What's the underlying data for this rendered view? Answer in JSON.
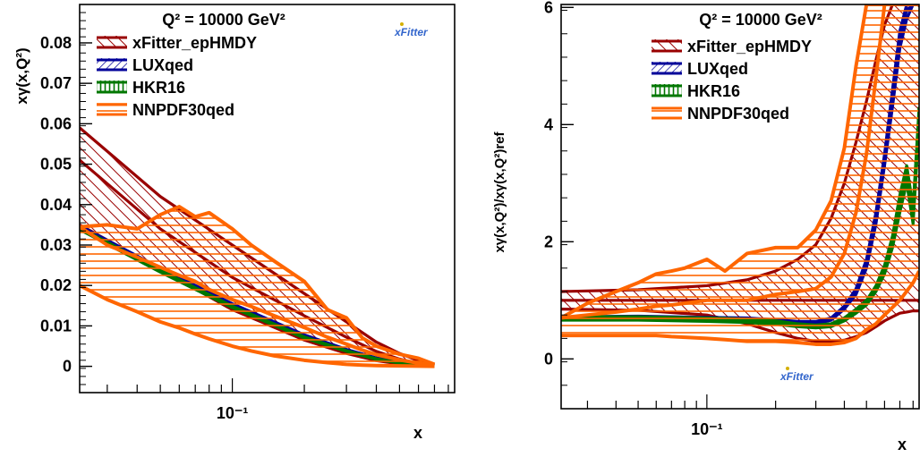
{
  "chart_data": [
    {
      "type": "line",
      "id": "abs",
      "annotation": "Q² = 10000 GeV²",
      "ylabel": "xγ(x,Q²)",
      "xlabel": "x",
      "xscale": "log",
      "xlim": [
        0.023,
        0.85
      ],
      "ylim": [
        -0.0065,
        0.0895
      ],
      "xticks": [
        0.1
      ],
      "xtick_labels": [
        "10⁻¹"
      ],
      "yticks": [
        0,
        0.01,
        0.02,
        0.03,
        0.04,
        0.05,
        0.06,
        0.07,
        0.08
      ],
      "ytick_labels": [
        "0",
        "0.01",
        "0.02",
        "0.03",
        "0.04",
        "0.05",
        "0.06",
        "0.07",
        "0.08"
      ],
      "logo": "xFitter",
      "legend": "top-left",
      "series": [
        {
          "name": "xFitter_epHMDY",
          "style": "band",
          "hatch": "diagonal",
          "color": "#990000",
          "x": [
            0.023,
            0.05,
            0.1,
            0.2,
            0.3,
            0.4,
            0.5,
            0.6,
            0.7
          ],
          "upper": [
            0.059,
            0.042,
            0.03,
            0.018,
            0.011,
            0.006,
            0.0032,
            0.0014,
            0.0004
          ],
          "lower": [
            0.035,
            0.024,
            0.014,
            0.0065,
            0.0032,
            0.0014,
            0.0006,
            0.0002,
            5e-05
          ],
          "central": [
            0.051,
            0.034,
            0.022,
            0.0125,
            0.0072,
            0.0037,
            0.0018,
            0.0007,
            0.0002
          ]
        },
        {
          "name": "LUXqed",
          "style": "band",
          "hatch": "cross",
          "color": "#000099",
          "x": [
            0.023,
            0.05,
            0.1,
            0.2,
            0.3,
            0.4,
            0.5,
            0.6,
            0.7
          ],
          "upper": [
            0.0348,
            0.0243,
            0.0155,
            0.0078,
            0.0042,
            0.0021,
            0.001,
            0.0004,
            0.0001
          ],
          "lower": [
            0.0343,
            0.0239,
            0.0151,
            0.0075,
            0.004,
            0.0019,
            0.0009,
            0.00035,
            8e-05
          ],
          "central": [
            0.0345,
            0.0241,
            0.0153,
            0.0076,
            0.0041,
            0.002,
            0.00095,
            0.00038,
            9e-05
          ]
        },
        {
          "name": "HKR16",
          "style": "band",
          "hatch": "vertical",
          "color": "#007700",
          "x": [
            0.023,
            0.05,
            0.1,
            0.2,
            0.3,
            0.4,
            0.5,
            0.6,
            0.7
          ],
          "upper": [
            0.0343,
            0.0238,
            0.0149,
            0.0073,
            0.0039,
            0.0019,
            0.0009,
            0.00035,
            8e-05
          ],
          "lower": [
            0.0338,
            0.0233,
            0.0145,
            0.007,
            0.0037,
            0.0017,
            0.0008,
            0.0003,
            6e-05
          ],
          "central": [
            0.034,
            0.0235,
            0.0147,
            0.0071,
            0.0038,
            0.0018,
            0.00085,
            0.00032,
            7e-05
          ]
        },
        {
          "name": "NNPDF30qed",
          "style": "band",
          "hatch": "horizontal",
          "color": "#ff6600",
          "x": [
            0.023,
            0.03,
            0.04,
            0.05,
            0.06,
            0.07,
            0.08,
            0.1,
            0.12,
            0.15,
            0.2,
            0.25,
            0.3,
            0.35,
            0.4,
            0.5,
            0.6,
            0.7
          ],
          "upper": [
            0.0345,
            0.035,
            0.034,
            0.0375,
            0.0395,
            0.037,
            0.038,
            0.034,
            0.03,
            0.026,
            0.021,
            0.014,
            0.012,
            0.007,
            0.005,
            0.003,
            0.002,
            0.0005
          ],
          "lower": [
            0.02,
            0.0165,
            0.0135,
            0.011,
            0.0095,
            0.008,
            0.0068,
            0.005,
            0.0038,
            0.0026,
            0.0015,
            0.0009,
            0.0005,
            0.0003,
            0.0002,
            0.0001,
            5e-05,
            0.0
          ],
          "central": [
            0.0345,
            0.03,
            0.027,
            0.0245,
            0.0225,
            0.021,
            0.019,
            0.0165,
            0.0148,
            0.0125,
            0.0096,
            0.0072,
            0.0055,
            0.004,
            0.0029,
            0.0016,
            0.0008,
            0.0002
          ]
        }
      ]
    },
    {
      "type": "line",
      "id": "ratio",
      "annotation": "Q² = 10000 GeV²",
      "ylabel": "xγ(x,Q²)/xγ(x,Q²)ref",
      "xlabel": "x",
      "xscale": "log",
      "xlim": [
        0.023,
        0.85
      ],
      "ylim": [
        -0.85,
        6.05
      ],
      "xticks": [
        0.1
      ],
      "xtick_labels": [
        "10⁻¹"
      ],
      "yticks": [
        0,
        2,
        4,
        6
      ],
      "ytick_labels": [
        "0",
        "2",
        "4",
        "6"
      ],
      "logo": "xFitter",
      "legend": "top-left",
      "series": [
        {
          "name": "xFitter_epHMDY",
          "style": "band",
          "hatch": "diagonal",
          "color": "#990000",
          "x": [
            0.023,
            0.05,
            0.1,
            0.15,
            0.2,
            0.25,
            0.3,
            0.35,
            0.4,
            0.45,
            0.5,
            0.55,
            0.6,
            0.65,
            0.7,
            0.75,
            0.8,
            0.85
          ],
          "upper": [
            1.15,
            1.18,
            1.25,
            1.35,
            1.5,
            1.7,
            1.95,
            2.4,
            3.0,
            3.7,
            4.4,
            5.1,
            5.7,
            6.05,
            6.05,
            6.05,
            6.05,
            6.05
          ],
          "lower": [
            0.85,
            0.83,
            0.75,
            0.6,
            0.45,
            0.35,
            0.3,
            0.3,
            0.32,
            0.38,
            0.45,
            0.55,
            0.65,
            0.72,
            0.78,
            0.8,
            0.82,
            0.82
          ],
          "central": [
            1.0,
            1.0,
            1.0,
            1.0,
            1.0,
            1.0,
            1.0,
            1.0,
            1.0,
            1.0,
            1.0,
            1.0,
            1.0,
            1.0,
            1.0,
            1.0,
            1.0,
            1.0
          ]
        },
        {
          "name": "LUXqed",
          "style": "band",
          "hatch": "cross",
          "color": "#000099",
          "x": [
            0.023,
            0.05,
            0.1,
            0.15,
            0.2,
            0.25,
            0.3,
            0.35,
            0.4,
            0.45,
            0.5,
            0.55,
            0.6,
            0.65,
            0.7,
            0.75,
            0.8,
            0.85
          ],
          "upper": [
            0.72,
            0.73,
            0.71,
            0.7,
            0.67,
            0.64,
            0.64,
            0.7,
            0.9,
            1.2,
            1.7,
            2.5,
            3.5,
            4.6,
            5.6,
            6.05,
            6.05,
            6.05
          ],
          "lower": [
            0.68,
            0.69,
            0.67,
            0.66,
            0.63,
            0.6,
            0.6,
            0.66,
            0.85,
            1.1,
            1.55,
            2.3,
            3.3,
            4.3,
            5.3,
            5.8,
            6.05,
            6.05
          ],
          "central": [
            0.7,
            0.71,
            0.69,
            0.68,
            0.65,
            0.62,
            0.62,
            0.68,
            0.87,
            1.15,
            1.62,
            2.4,
            3.4,
            4.45,
            5.45,
            5.95,
            6.05,
            6.05
          ]
        },
        {
          "name": "HKR16",
          "style": "band",
          "hatch": "vertical",
          "color": "#007700",
          "x": [
            0.023,
            0.05,
            0.1,
            0.15,
            0.2,
            0.25,
            0.3,
            0.35,
            0.4,
            0.45,
            0.5,
            0.55,
            0.6,
            0.65,
            0.7,
            0.75,
            0.8,
            0.85
          ],
          "upper": [
            0.72,
            0.72,
            0.7,
            0.68,
            0.65,
            0.6,
            0.58,
            0.6,
            0.7,
            0.85,
            1.0,
            1.25,
            1.6,
            2.1,
            2.8,
            3.3,
            2.6,
            4.3
          ],
          "lower": [
            0.66,
            0.66,
            0.64,
            0.62,
            0.59,
            0.55,
            0.53,
            0.55,
            0.65,
            0.78,
            0.92,
            1.15,
            1.45,
            1.9,
            2.5,
            3.0,
            2.3,
            4.0
          ],
          "central": [
            0.69,
            0.69,
            0.67,
            0.65,
            0.62,
            0.58,
            0.56,
            0.57,
            0.68,
            0.82,
            0.96,
            1.2,
            1.52,
            2.0,
            2.65,
            3.15,
            2.45,
            4.15
          ]
        },
        {
          "name": "NNPDF30qed",
          "style": "band",
          "hatch": "horizontal",
          "color": "#ff6600",
          "x": [
            0.023,
            0.03,
            0.04,
            0.05,
            0.06,
            0.07,
            0.08,
            0.1,
            0.12,
            0.15,
            0.2,
            0.25,
            0.3,
            0.35,
            0.4,
            0.45,
            0.5,
            0.55,
            0.6,
            0.7,
            0.8,
            0.85
          ],
          "upper": [
            0.7,
            0.95,
            1.15,
            1.3,
            1.45,
            1.5,
            1.55,
            1.7,
            1.5,
            1.8,
            1.9,
            1.9,
            2.2,
            2.7,
            3.6,
            5.0,
            6.05,
            6.05,
            6.05,
            6.05,
            6.05,
            6.05
          ],
          "lower": [
            0.4,
            0.4,
            0.4,
            0.4,
            0.4,
            0.38,
            0.37,
            0.35,
            0.33,
            0.3,
            0.3,
            0.28,
            0.25,
            0.25,
            0.28,
            0.35,
            0.5,
            0.6,
            0.75,
            1.0,
            1.3,
            1.5
          ],
          "central": [
            0.7,
            0.75,
            0.8,
            0.85,
            0.9,
            0.92,
            0.95,
            1.0,
            1.0,
            1.0,
            1.1,
            1.15,
            1.2,
            1.4,
            1.8,
            2.5,
            3.5,
            4.8,
            6.05,
            6.05,
            6.05,
            6.05
          ]
        }
      ]
    }
  ]
}
